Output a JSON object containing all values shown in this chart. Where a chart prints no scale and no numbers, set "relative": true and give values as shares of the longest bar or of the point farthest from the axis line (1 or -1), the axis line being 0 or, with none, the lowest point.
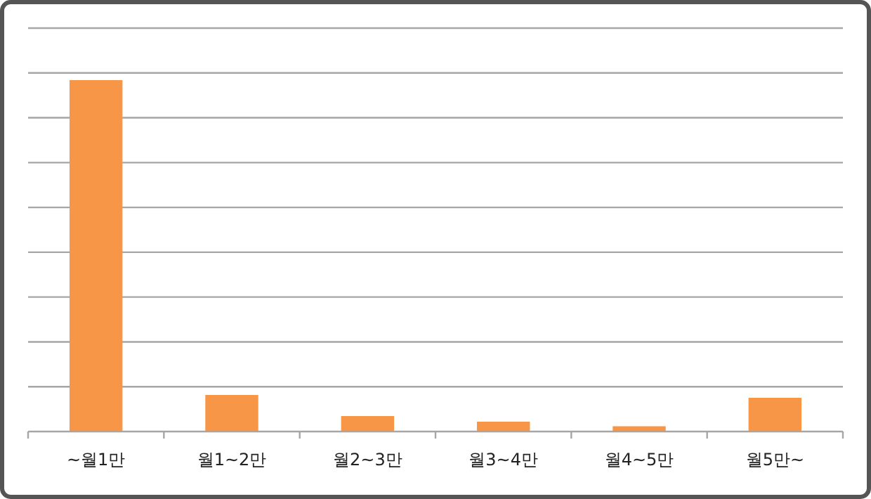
{
  "chart_data": {
    "type": "bar",
    "relative": true,
    "grid": "y",
    "color": "#f79646",
    "categories": [
      "~월1만",
      "월1~2만",
      "월2~3만",
      "월3~4만",
      "월4~5만",
      "월5만~"
    ],
    "values": [
      1,
      0.104,
      0.044,
      0.028,
      0.015,
      0.096
    ]
  }
}
